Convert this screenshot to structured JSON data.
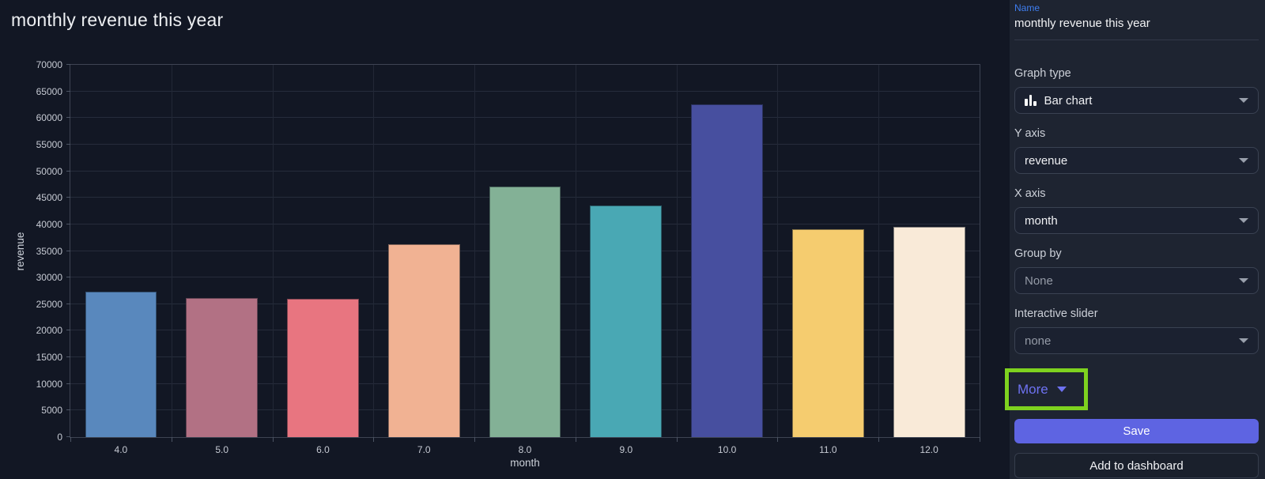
{
  "header": {
    "title": "monthly revenue this year"
  },
  "chart_data": {
    "type": "bar",
    "title": "monthly revenue this year",
    "categories": [
      "4.0",
      "5.0",
      "6.0",
      "7.0",
      "8.0",
      "9.0",
      "10.0",
      "11.0",
      "12.0"
    ],
    "values": [
      27300,
      26100,
      26000,
      36300,
      47100,
      43500,
      62500,
      39100,
      39500
    ],
    "bar_colors": [
      "#5988bd",
      "#b27184",
      "#e87580",
      "#f1b293",
      "#83b196",
      "#49a8b4",
      "#474f9f",
      "#f5cc6f",
      "#f9ead8"
    ],
    "xlabel": "month",
    "ylabel": "revenue",
    "ylim": [
      0,
      70000
    ],
    "ytick_step": 5000,
    "grid": true,
    "legend": "none"
  },
  "panel": {
    "name_label": "Name",
    "name_value": "monthly revenue this year",
    "fields": [
      {
        "label": "Graph type",
        "value": "Bar chart",
        "icon": "bar-chart-icon",
        "muted": false
      },
      {
        "label": "Y axis",
        "value": "revenue",
        "muted": false
      },
      {
        "label": "X axis",
        "value": "month",
        "muted": false
      },
      {
        "label": "Group by",
        "value": "None",
        "muted": true
      },
      {
        "label": "Interactive slider",
        "value": "none",
        "muted": true
      }
    ],
    "more_label": "More",
    "save_label": "Save",
    "add_label": "Add to dashboard"
  },
  "colors": {
    "accent": "#5e64e2",
    "link": "#6e72f2",
    "annotation": "#7ed21f",
    "name-label": "#3f7ef0",
    "bg-main": "#121724",
    "bg-panel": "#1e2431"
  }
}
